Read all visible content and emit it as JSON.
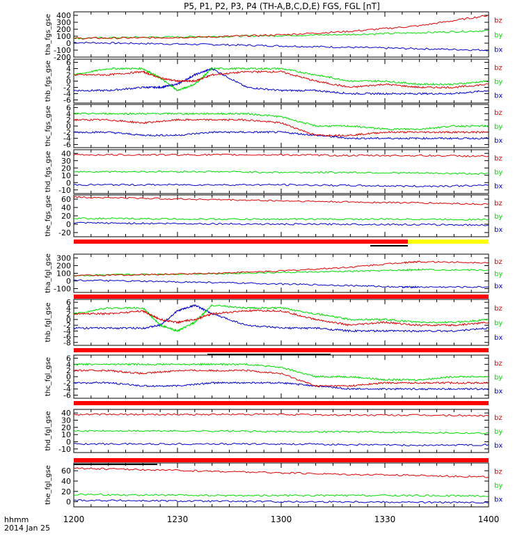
{
  "title": "P5, P1, P2, P3, P4 (TH-A,B,C,D,E) FGS, FGL [nT]",
  "x_axis": {
    "tick_labels": [
      "1200",
      "1230",
      "1300",
      "1330",
      "1400"
    ],
    "corner_label_1": "hhmm",
    "corner_label_2": "2014 Jan 25"
  },
  "colors": {
    "bx": "#0000cc",
    "by": "#00dd00",
    "bz": "#dd0000",
    "flag_red": "#ff0000",
    "flag_yellow": "#ffff00"
  },
  "chart_data": [
    {
      "type": "line",
      "ylabel": "tha_fgs_gse",
      "ylim": [
        -200,
        450
      ],
      "yticks": [
        "-200",
        "-100",
        "0",
        "100",
        "200",
        "300",
        "400"
      ],
      "x": [
        0,
        20,
        40,
        60,
        80,
        100,
        120
      ],
      "series": [
        {
          "name": "bx",
          "values": [
            10,
            -5,
            -20,
            -40,
            -60,
            -80,
            -100
          ]
        },
        {
          "name": "by",
          "values": [
            70,
            85,
            95,
            110,
            125,
            150,
            180
          ]
        },
        {
          "name": "bz",
          "values": [
            70,
            75,
            90,
            120,
            170,
            250,
            400
          ]
        }
      ]
    },
    {
      "type": "line",
      "ylabel": "thb_fgs_gse",
      "ylim": [
        -7,
        7
      ],
      "yticks": [
        "-6",
        "-4",
        "-2",
        "0",
        "2",
        "4",
        "6"
      ],
      "x": [
        0,
        10,
        20,
        25,
        30,
        35,
        40,
        50,
        60,
        70,
        80,
        90,
        100,
        110,
        120
      ],
      "series": [
        {
          "name": "bx",
          "values": [
            -3,
            -3,
            -2,
            -2,
            -1,
            2,
            4,
            -2,
            -3,
            -3,
            -4,
            -4,
            -4,
            -4,
            -3
          ]
        },
        {
          "name": "by",
          "values": [
            2,
            4,
            4,
            1,
            -3,
            -1,
            4,
            4,
            4,
            2,
            0,
            0,
            -1,
            -1,
            0
          ]
        },
        {
          "name": "bz",
          "values": [
            2,
            2,
            3,
            1,
            0,
            0,
            2,
            3,
            3,
            0,
            -2,
            -1,
            -2,
            -2,
            -1
          ]
        }
      ]
    },
    {
      "type": "line",
      "ylabel": "thc_fgs_gse",
      "ylim": [
        -7,
        7
      ],
      "yticks": [
        "-6",
        "-4",
        "-2",
        "0",
        "2",
        "4",
        "6"
      ],
      "x": [
        0,
        10,
        20,
        30,
        40,
        50,
        60,
        70,
        80,
        90,
        100,
        110,
        120
      ],
      "series": [
        {
          "name": "bx",
          "values": [
            -2,
            -2,
            -3,
            -3,
            -2,
            -2,
            -2,
            -3,
            -4,
            -4,
            -4,
            -4,
            -4
          ]
        },
        {
          "name": "by",
          "values": [
            4,
            4,
            4,
            4,
            4,
            4,
            3,
            0,
            0,
            -1,
            -1,
            0,
            0
          ]
        },
        {
          "name": "bz",
          "values": [
            2,
            2,
            1,
            2,
            2,
            2,
            1,
            -3,
            -3,
            -2,
            -2,
            -2,
            -2
          ]
        }
      ]
    },
    {
      "type": "line",
      "ylabel": "thd_fgs_gse",
      "ylim": [
        -15,
        45
      ],
      "yticks": [
        "-10",
        "0",
        "10",
        "20",
        "30",
        "40"
      ],
      "x": [
        0,
        20,
        40,
        60,
        80,
        100,
        120
      ],
      "series": [
        {
          "name": "bx",
          "values": [
            -3,
            -3,
            -3,
            -3,
            -4,
            -5,
            -4
          ]
        },
        {
          "name": "by",
          "values": [
            15,
            15,
            15,
            14,
            14,
            13,
            12
          ]
        },
        {
          "name": "bz",
          "values": [
            38,
            38,
            38,
            38,
            37,
            37,
            36
          ]
        }
      ]
    },
    {
      "type": "line",
      "ylabel": "the_fgs_gse",
      "ylim": [
        -30,
        70
      ],
      "yticks": [
        "-20",
        "0",
        "20",
        "40",
        "60"
      ],
      "x": [
        0,
        20,
        40,
        60,
        80,
        100,
        120
      ],
      "series": [
        {
          "name": "bx",
          "values": [
            3,
            2,
            1,
            0,
            0,
            -1,
            -2
          ]
        },
        {
          "name": "by",
          "values": [
            14,
            13,
            12,
            12,
            12,
            12,
            11
          ]
        },
        {
          "name": "bz",
          "values": [
            65,
            62,
            59,
            56,
            53,
            51,
            48
          ]
        }
      ]
    },
    {
      "type": "line",
      "ylabel": "tha_fgl_gse",
      "ylim": [
        -150,
        350
      ],
      "yticks": [
        "-100",
        "0",
        "100",
        "200",
        "300"
      ],
      "x": [
        0,
        20,
        40,
        60,
        80,
        95,
        100,
        120
      ],
      "series": [
        {
          "name": "bx",
          "values": [
            10,
            -5,
            -20,
            -40,
            -60,
            -80,
            -80,
            -80
          ]
        },
        {
          "name": "by",
          "values": [
            70,
            85,
            95,
            110,
            125,
            140,
            150,
            140
          ]
        },
        {
          "name": "bz",
          "values": [
            70,
            80,
            100,
            130,
            180,
            240,
            250,
            240
          ]
        }
      ]
    },
    {
      "type": "line",
      "ylabel": "thb_fgl_gse",
      "ylim": [
        -9,
        7
      ],
      "yticks": [
        "-8",
        "-6",
        "-4",
        "-2",
        "0",
        "2",
        "4",
        "6"
      ],
      "x": [
        0,
        10,
        20,
        25,
        30,
        35,
        40,
        50,
        60,
        70,
        80,
        90,
        100,
        110,
        120
      ],
      "series": [
        {
          "name": "bx",
          "values": [
            -3,
            -3,
            -3,
            -2,
            3,
            5,
            2,
            -2,
            -3,
            -3,
            -4,
            -4,
            -4,
            -4,
            -3
          ]
        },
        {
          "name": "by",
          "values": [
            2,
            4,
            4,
            -2,
            -4,
            -1,
            5,
            4,
            4,
            2,
            0,
            0,
            -1,
            -1,
            0
          ]
        },
        {
          "name": "bz",
          "values": [
            2,
            2,
            3,
            0,
            -1,
            0,
            2,
            3,
            3,
            0,
            -2,
            -1,
            -2,
            -2,
            -1
          ]
        }
      ]
    },
    {
      "type": "line",
      "ylabel": "thc_fgl_gse",
      "ylim": [
        -7,
        7
      ],
      "yticks": [
        "-6",
        "-4",
        "-2",
        "0",
        "2",
        "4",
        "6"
      ],
      "x": [
        0,
        10,
        20,
        30,
        40,
        50,
        60,
        70,
        80,
        90,
        100,
        110,
        120
      ],
      "series": [
        {
          "name": "bx",
          "values": [
            -2,
            -2,
            -3,
            -3,
            -2,
            -2,
            -2,
            -3,
            -4,
            -4,
            -4,
            -4,
            -4
          ]
        },
        {
          "name": "by",
          "values": [
            4,
            4,
            4,
            4,
            4,
            4,
            3,
            0,
            0,
            -1,
            -1,
            0,
            0
          ]
        },
        {
          "name": "bz",
          "values": [
            2,
            2,
            1,
            2,
            2,
            2,
            1,
            -3,
            -3,
            -2,
            -2,
            -2,
            -2
          ]
        }
      ]
    },
    {
      "type": "line",
      "ylabel": "thd_fgl_gse",
      "ylim": [
        -15,
        45
      ],
      "yticks": [
        "-10",
        "0",
        "10",
        "20",
        "30",
        "40"
      ],
      "x": [
        0,
        20,
        40,
        60,
        80,
        100,
        120
      ],
      "series": [
        {
          "name": "bx",
          "values": [
            -3,
            -3,
            -3,
            -3,
            -4,
            -5,
            -4
          ]
        },
        {
          "name": "by",
          "values": [
            15,
            15,
            15,
            14,
            14,
            13,
            12
          ]
        },
        {
          "name": "bz",
          "values": [
            38,
            38,
            38,
            38,
            37,
            37,
            36
          ]
        }
      ]
    },
    {
      "type": "line",
      "ylabel": "the_fgl_gse",
      "ylim": [
        -10,
        75
      ],
      "yticks": [
        "0",
        "20",
        "40",
        "60"
      ],
      "x": [
        0,
        20,
        40,
        60,
        80,
        100,
        120
      ],
      "series": [
        {
          "name": "bx",
          "values": [
            3,
            2,
            1,
            0,
            0,
            -1,
            -2
          ]
        },
        {
          "name": "by",
          "values": [
            14,
            13,
            12,
            12,
            12,
            12,
            11
          ]
        },
        {
          "name": "bz",
          "values": [
            65,
            62,
            59,
            56,
            53,
            51,
            48
          ]
        }
      ]
    }
  ]
}
